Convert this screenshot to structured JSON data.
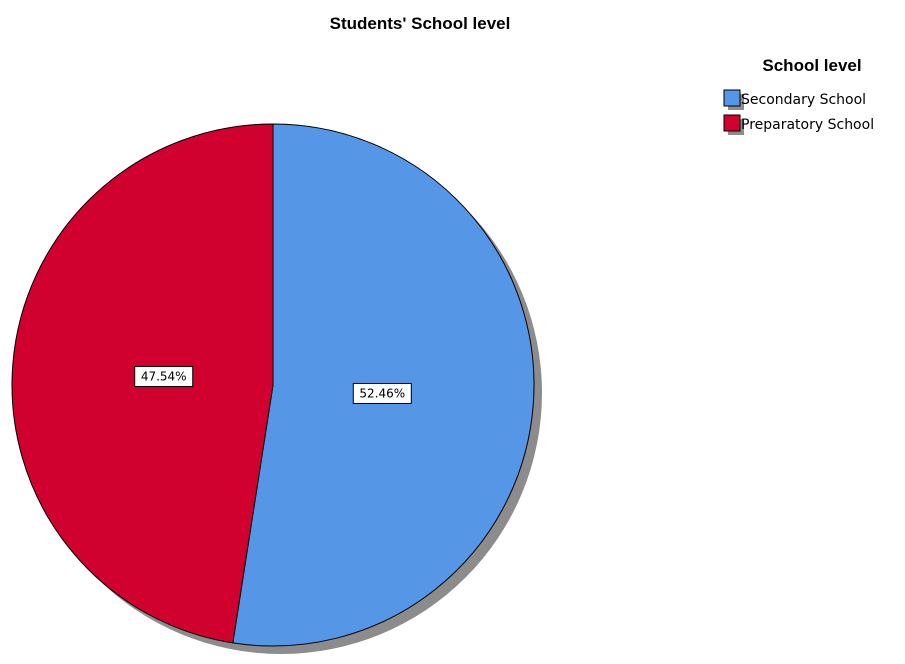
{
  "chart_data": {
    "type": "pie",
    "title": "Students' School level",
    "legend_title": "School level",
    "legend_position": "top-right",
    "slices": [
      {
        "label": "Secondary School",
        "value": 52.46,
        "data_label": "52.46%",
        "color": "#5596E6"
      },
      {
        "label": "Preparatory School",
        "value": 47.54,
        "data_label": "47.54%",
        "color": "#D0002F"
      }
    ]
  }
}
